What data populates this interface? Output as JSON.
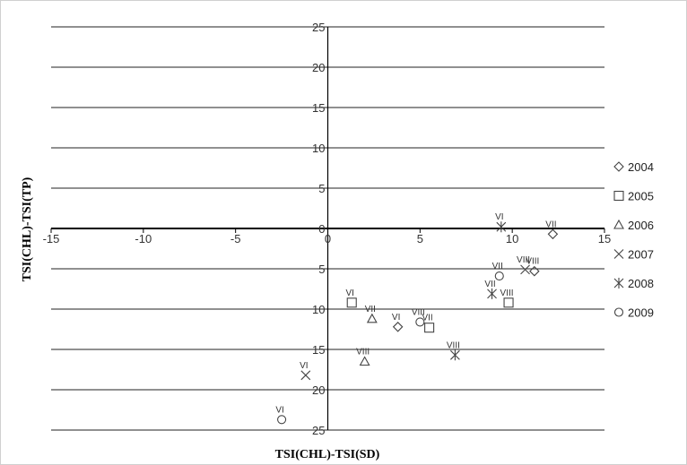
{
  "chart_data": {
    "type": "scatter",
    "xlabel": "TSI(CHL)-TSI(SD)",
    "ylabel": "TSI(CHL)-TSI(TP)",
    "xlim": [
      -15,
      15
    ],
    "ylim": [
      -25,
      25
    ],
    "x_ticks": [
      -15,
      -10,
      -5,
      0,
      5,
      10,
      15
    ],
    "y_ticks": [
      25,
      20,
      15,
      10,
      5,
      0,
      5,
      10,
      15,
      20,
      25
    ],
    "y_tick_values": [
      25,
      20,
      15,
      10,
      5,
      0,
      -5,
      -10,
      -15,
      -20,
      -25
    ],
    "grid": "horizontal",
    "legend_position": "right",
    "series": [
      {
        "name": "2004",
        "marker": "diamond",
        "points": [
          {
            "x": 12.2,
            "y": -0.7,
            "label": "VII"
          },
          {
            "x": 11.2,
            "y": -5.3,
            "label": "VIII"
          },
          {
            "x": 3.8,
            "y": -12.2,
            "label": "VI"
          }
        ]
      },
      {
        "name": "2005",
        "marker": "square",
        "points": [
          {
            "x": 1.3,
            "y": -9.2,
            "label": "VI"
          },
          {
            "x": 9.8,
            "y": -9.2,
            "label": "VIII"
          },
          {
            "x": 5.5,
            "y": -12.3,
            "label": "VII"
          }
        ]
      },
      {
        "name": "2006",
        "marker": "triangle",
        "points": [
          {
            "x": 2.4,
            "y": -11.2,
            "label": "VII"
          },
          {
            "x": 2.0,
            "y": -16.5,
            "label": "VIII"
          }
        ]
      },
      {
        "name": "2007",
        "marker": "x",
        "points": [
          {
            "x": 10.7,
            "y": -5.1,
            "label": "VIII"
          },
          {
            "x": -1.2,
            "y": -18.2,
            "label": "VI"
          }
        ]
      },
      {
        "name": "2008",
        "marker": "asterisk",
        "points": [
          {
            "x": 9.4,
            "y": 0.2,
            "label": "VI"
          },
          {
            "x": 8.9,
            "y": -8.1,
            "label": "VII"
          },
          {
            "x": 6.9,
            "y": -15.7,
            "label": "VIII"
          }
        ]
      },
      {
        "name": "2009",
        "marker": "circle",
        "points": [
          {
            "x": 9.3,
            "y": -5.9,
            "label": "VII"
          },
          {
            "x": 5.0,
            "y": -11.6,
            "label": "VIII"
          },
          {
            "x": -2.5,
            "y": -23.7,
            "label": "VI"
          }
        ]
      }
    ]
  }
}
